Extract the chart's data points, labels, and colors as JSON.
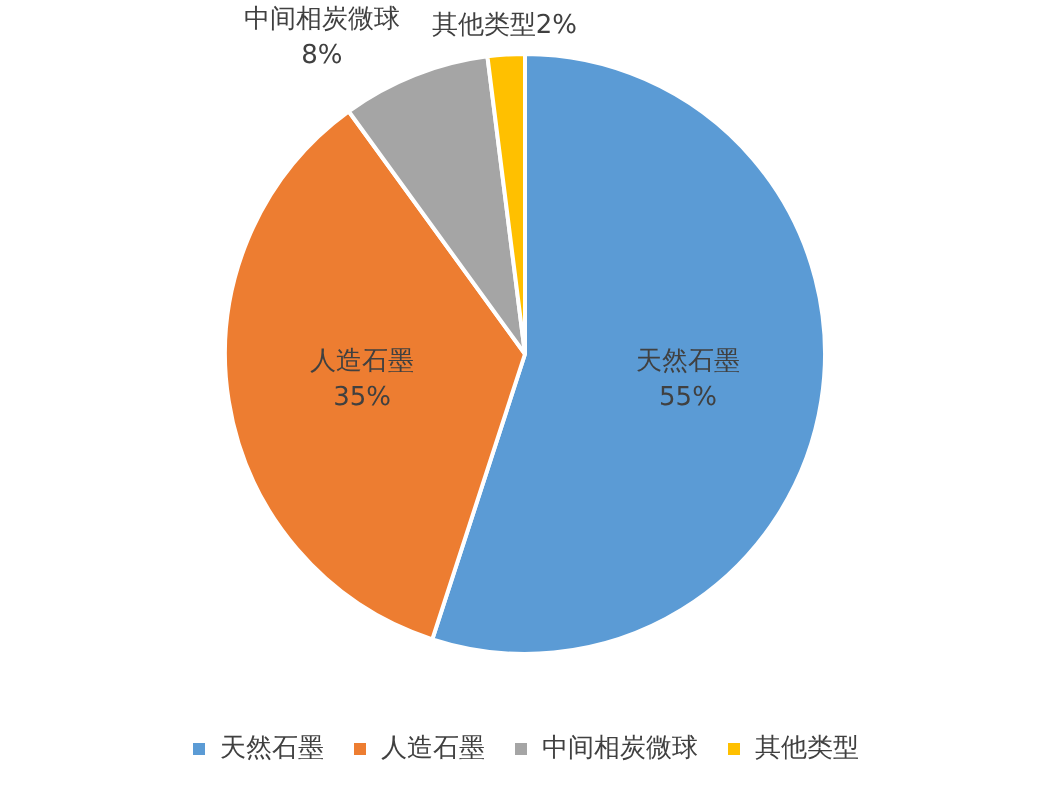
{
  "chart_data": {
    "type": "pie",
    "categories": [
      "天然石墨",
      "人造石墨",
      "中间相炭微球",
      "其他类型"
    ],
    "values": [
      55,
      35,
      8,
      2
    ],
    "value_labels": [
      "55%",
      "35%",
      "8%",
      "2%"
    ],
    "colors": [
      "#5b9bd5",
      "#ed7d31",
      "#a5a5a5",
      "#ffc000"
    ],
    "legend": "bottom"
  }
}
